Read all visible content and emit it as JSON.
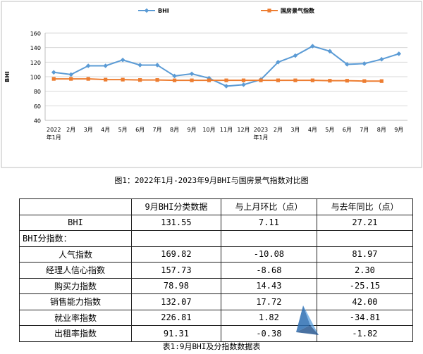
{
  "chart_data": {
    "type": "line",
    "categories": [
      "2022年1月",
      "2月",
      "3月",
      "4月",
      "5月",
      "6月",
      "7月",
      "8月",
      "9月",
      "10月",
      "11月",
      "12月",
      "2023年1月",
      "2月",
      "3月",
      "4月",
      "5月",
      "6月",
      "7月",
      "8月",
      "9月"
    ],
    "tick_labels": [
      [
        "2022",
        "年1月"
      ],
      [
        "2月",
        ""
      ],
      [
        "3月",
        ""
      ],
      [
        "4月",
        ""
      ],
      [
        "5月",
        ""
      ],
      [
        "6月",
        ""
      ],
      [
        "7月",
        ""
      ],
      [
        "8月",
        ""
      ],
      [
        "9月",
        ""
      ],
      [
        "10月",
        ""
      ],
      [
        "11月",
        ""
      ],
      [
        "12月",
        ""
      ],
      [
        "2023",
        "年1月"
      ],
      [
        "2月",
        ""
      ],
      [
        "3月",
        ""
      ],
      [
        "4月",
        ""
      ],
      [
        "5月",
        ""
      ],
      [
        "6月",
        ""
      ],
      [
        "7月",
        ""
      ],
      [
        "8月",
        ""
      ],
      [
        "9月",
        ""
      ]
    ],
    "series": [
      {
        "name": "BHI",
        "color": "#5b9bd5",
        "marker": "diamond",
        "values": [
          106,
          103,
          115,
          115,
          123,
          116,
          116,
          101,
          104,
          98,
          87,
          89,
          96,
          120,
          129,
          142,
          135,
          117,
          118,
          124,
          131.55
        ]
      },
      {
        "name": "国房景气指数",
        "color": "#ed7d31",
        "marker": "square",
        "values": [
          97,
          97,
          97,
          96,
          96,
          95.5,
          95.5,
          95,
          95,
          95,
          95,
          95,
          95,
          95,
          95,
          95,
          94.5,
          94.5,
          94,
          94,
          null
        ]
      }
    ],
    "ylabel": "BHI",
    "ylim": [
      40,
      160
    ],
    "yticks": [
      40,
      60,
      80,
      100,
      120,
      140,
      160
    ],
    "grid": true,
    "legend": "top"
  },
  "caption1": "图1：2022年1月-2023年9月BHI与国房景气指数对比图",
  "table": {
    "headers": [
      "",
      "9月BHI分类数据",
      "与上月环比（点）",
      "与去年同比（点）"
    ],
    "rows": [
      {
        "label": "BHI",
        "v1": "131.55",
        "v2": "7.11",
        "v3": "27.21"
      },
      {
        "label": "BHI分指数：",
        "section": true
      },
      {
        "label": "人气指数",
        "v1": "169.82",
        "v2": "-10.08",
        "v3": "81.97"
      },
      {
        "label": "经理人信心指数",
        "v1": "157.73",
        "v2": "-8.68",
        "v3": "2.30"
      },
      {
        "label": "购买力指数",
        "v1": "78.98",
        "v2": "14.43",
        "v3": "-25.15"
      },
      {
        "label": "销售能力指数",
        "v1": "132.07",
        "v2": "17.72",
        "v3": "42.00"
      },
      {
        "label": "就业率指数",
        "v1": "226.81",
        "v2": "1.82",
        "v3": "-34.81"
      },
      {
        "label": "出租率指数",
        "v1": "91.31",
        "v2": "-0.38",
        "v3": "-1.82"
      }
    ]
  },
  "caption2": "表1:9月BHI及分指数数据表"
}
